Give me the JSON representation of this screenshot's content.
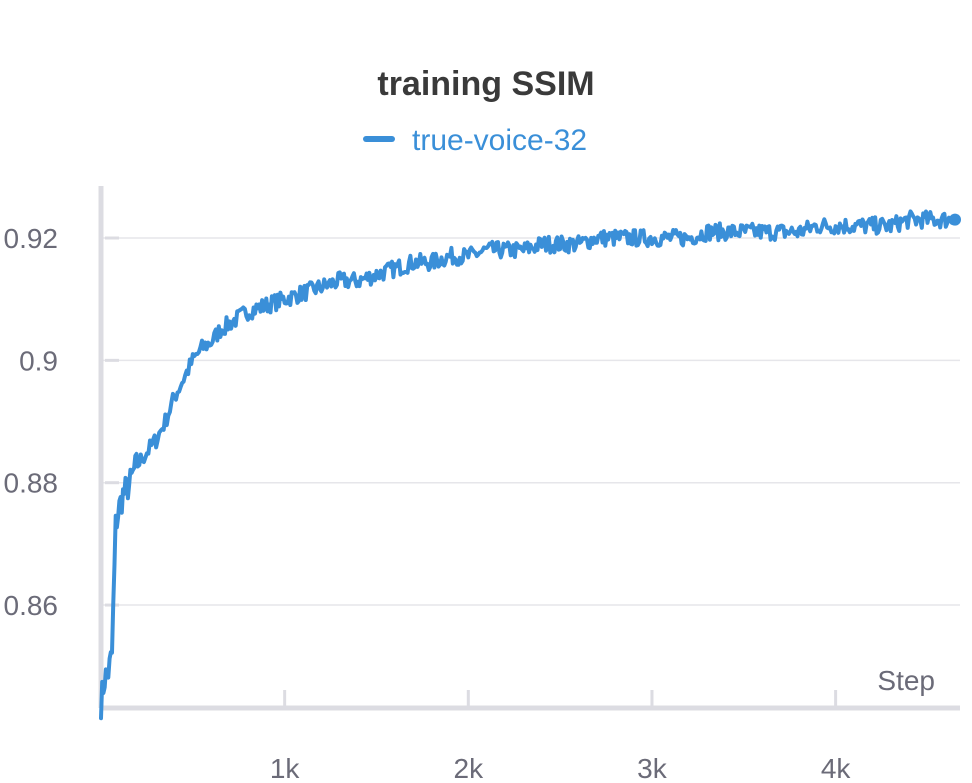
{
  "chart_data": {
    "type": "line",
    "title": "training SSIM",
    "xlabel": "Step",
    "ylabel": "",
    "xlim": [
      0,
      4650
    ],
    "ylim": [
      0.8435,
      0.9285
    ],
    "x_ticks": [
      {
        "value": 1000,
        "label": "1k"
      },
      {
        "value": 2000,
        "label": "2k"
      },
      {
        "value": 3000,
        "label": "3k"
      },
      {
        "value": 4000,
        "label": "4k"
      }
    ],
    "y_ticks": [
      {
        "value": 0.86,
        "label": "0.86"
      },
      {
        "value": 0.88,
        "label": "0.88"
      },
      {
        "value": 0.9,
        "label": "0.9"
      },
      {
        "value": 0.92,
        "label": "0.92"
      }
    ],
    "grid": true,
    "legend_position": "top-center",
    "series": [
      {
        "name": "true-voice-32",
        "color": "#3a8fd8",
        "x": [
          0,
          20,
          40,
          60,
          80,
          100,
          120,
          140,
          160,
          180,
          200,
          250,
          300,
          350,
          400,
          450,
          500,
          550,
          600,
          650,
          700,
          750,
          800,
          900,
          1000,
          1100,
          1200,
          1300,
          1400,
          1500,
          1600,
          1700,
          1800,
          1900,
          2000,
          2100,
          2200,
          2300,
          2400,
          2500,
          2600,
          2700,
          2800,
          2900,
          3000,
          3100,
          3200,
          3300,
          3400,
          3500,
          3600,
          3700,
          3800,
          3900,
          4000,
          4100,
          4200,
          4300,
          4400,
          4500,
          4600,
          4650
        ],
        "values": [
          0.844,
          0.848,
          0.849,
          0.852,
          0.873,
          0.876,
          0.878,
          0.879,
          0.88,
          0.882,
          0.883,
          0.885,
          0.887,
          0.89,
          0.894,
          0.897,
          0.9,
          0.902,
          0.903,
          0.905,
          0.906,
          0.907,
          0.908,
          0.909,
          0.91,
          0.911,
          0.912,
          0.913,
          0.913,
          0.914,
          0.915,
          0.916,
          0.916,
          0.917,
          0.917,
          0.918,
          0.918,
          0.918,
          0.919,
          0.919,
          0.919,
          0.92,
          0.92,
          0.92,
          0.92,
          0.92,
          0.92,
          0.921,
          0.921,
          0.921,
          0.921,
          0.921,
          0.921,
          0.922,
          0.922,
          0.922,
          0.922,
          0.922,
          0.923,
          0.923,
          0.923,
          0.923
        ]
      }
    ]
  }
}
